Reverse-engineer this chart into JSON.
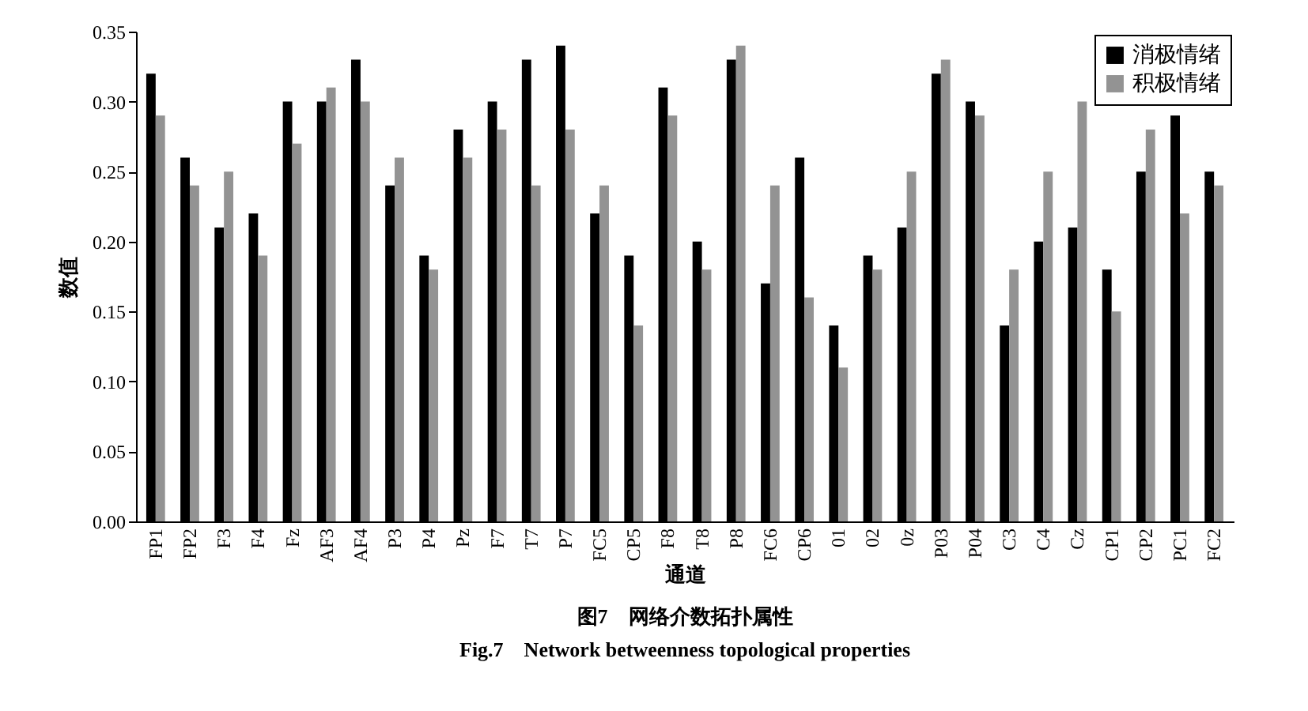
{
  "chart_data": {
    "type": "bar",
    "title": "图7　网络介数拓扑属性",
    "subtitle": "Fig.7　Network betweenness topological properties",
    "xlabel": "通道",
    "ylabel": "数值",
    "categories": [
      "FP1",
      "FP2",
      "F3",
      "F4",
      "Fz",
      "AF3",
      "AF4",
      "P3",
      "P4",
      "Pz",
      "F7",
      "T7",
      "P7",
      "FC5",
      "CP5",
      "F8",
      "T8",
      "P8",
      "FC6",
      "CP6",
      "01",
      "02",
      "0z",
      "P03",
      "P04",
      "C3",
      "C4",
      "Cz",
      "CP1",
      "CP2",
      "PC1",
      "FC2"
    ],
    "series": [
      {
        "name": "消极情绪",
        "color": "#000000",
        "values": [
          0.32,
          0.26,
          0.21,
          0.22,
          0.3,
          0.3,
          0.33,
          0.24,
          0.19,
          0.28,
          0.3,
          0.33,
          0.34,
          0.22,
          0.19,
          0.31,
          0.2,
          0.33,
          0.17,
          0.26,
          0.14,
          0.19,
          0.21,
          0.32,
          0.3,
          0.14,
          0.2,
          0.21,
          0.18,
          0.25,
          0.29,
          0.25
        ]
      },
      {
        "name": "积极情绪",
        "color": "#939393",
        "values": [
          0.29,
          0.24,
          0.25,
          0.19,
          0.27,
          0.31,
          0.3,
          0.26,
          0.18,
          0.26,
          0.28,
          0.24,
          0.28,
          0.24,
          0.14,
          0.29,
          0.18,
          0.34,
          0.24,
          0.16,
          0.11,
          0.18,
          0.25,
          0.33,
          0.29,
          0.18,
          0.25,
          0.3,
          0.15,
          0.28,
          0.22,
          0.24
        ]
      }
    ],
    "ylim": [
      0,
      0.35
    ],
    "yticks": [
      {
        "value": 0,
        "label": "0.00"
      },
      0.05,
      {
        "value": 0.1,
        "label": "0.10"
      },
      0.15,
      {
        "value": 0.2,
        "label": "0.20"
      },
      0.25,
      {
        "value": 0.3,
        "label": "0.30"
      },
      0.35
    ],
    "grid": false,
    "legend": "top right"
  }
}
